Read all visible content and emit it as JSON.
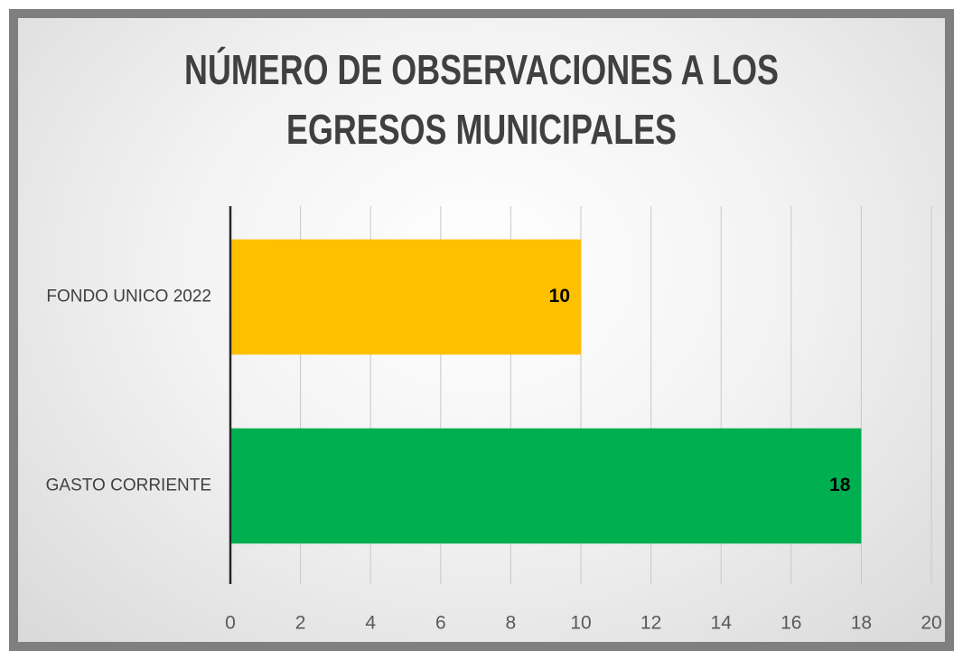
{
  "chart_data": {
    "type": "bar",
    "orientation": "horizontal",
    "title": "NÚMERO DE OBSERVACIONES A LOS EGRESOS MUNICIPALES",
    "categories": [
      "FONDO UNICO 2022",
      "GASTO CORRIENTE"
    ],
    "values": [
      10,
      18
    ],
    "colors": [
      "#FFC000",
      "#00B050"
    ],
    "xlim": [
      0,
      20
    ],
    "xticks": [
      0,
      2,
      4,
      6,
      8,
      10,
      12,
      14,
      16,
      18,
      20
    ],
    "grid": true
  }
}
